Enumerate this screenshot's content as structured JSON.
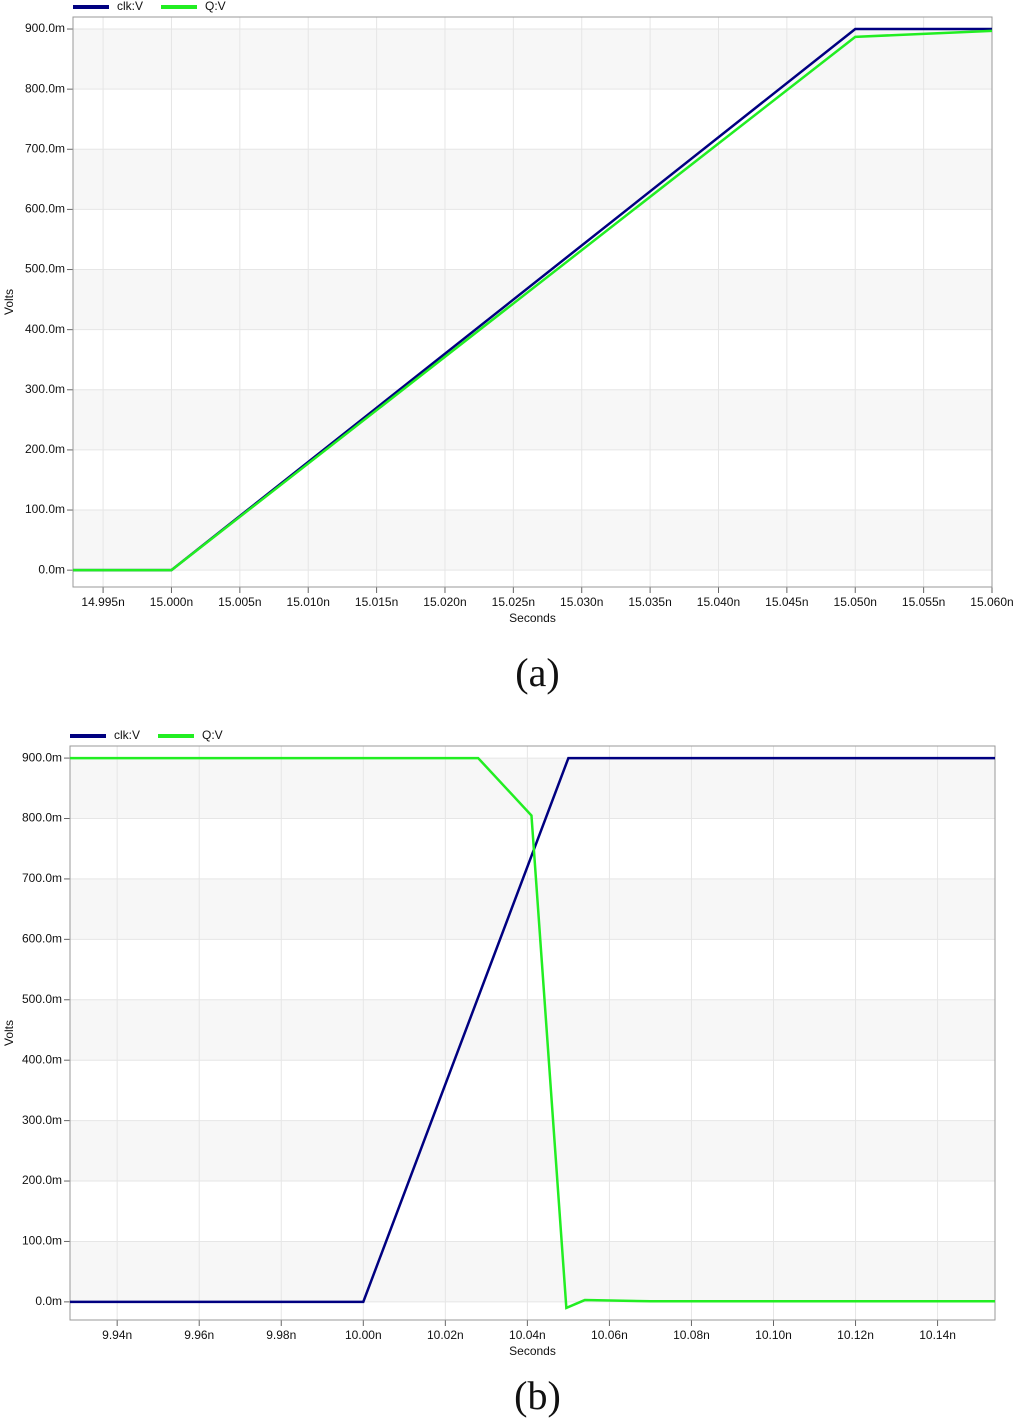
{
  "chart_data": [
    {
      "type": "line",
      "caption": "(a)",
      "x_label": "Seconds",
      "y_label": "Volts",
      "grid": true,
      "series": [
        {
          "name": "clk:V",
          "color": "#000080",
          "x": [
            14.9928,
            15.0,
            15.05,
            15.06
          ],
          "values": [
            0,
            0,
            0.9,
            0.9
          ]
        },
        {
          "name": "Q:V",
          "color": "#22ee22",
          "x": [
            14.9928,
            15.0,
            15.05,
            15.06
          ],
          "values": [
            0,
            0,
            0.887,
            0.897
          ]
        }
      ],
      "xlim": [
        14.9928,
        15.06
      ],
      "xticks": [
        {
          "value": 14.995,
          "label": "14.995n"
        },
        {
          "value": 15.0,
          "label": "15.000n"
        },
        {
          "value": 15.005,
          "label": "15.005n"
        },
        {
          "value": 15.01,
          "label": "15.010n"
        },
        {
          "value": 15.015,
          "label": "15.015n"
        },
        {
          "value": 15.02,
          "label": "15.020n"
        },
        {
          "value": 15.025,
          "label": "15.025n"
        },
        {
          "value": 15.03,
          "label": "15.030n"
        },
        {
          "value": 15.035,
          "label": "15.035n"
        },
        {
          "value": 15.04,
          "label": "15.040n"
        },
        {
          "value": 15.045,
          "label": "15.045n"
        },
        {
          "value": 15.05,
          "label": "15.050n"
        },
        {
          "value": 15.055,
          "label": "15.055n"
        },
        {
          "value": 15.06,
          "label": "15.060n"
        }
      ],
      "ylim": [
        -0.028,
        0.92
      ],
      "yticks": [
        {
          "value": 0,
          "label": "0.0m"
        },
        {
          "value": 0.1,
          "label": "100.0m"
        },
        {
          "value": 0.2,
          "label": "200.0m"
        },
        {
          "value": 0.3,
          "label": "300.0m"
        },
        {
          "value": 0.4,
          "label": "400.0m"
        },
        {
          "value": 0.5,
          "label": "500.0m"
        },
        {
          "value": 0.6,
          "label": "600.0m"
        },
        {
          "value": 0.7,
          "label": "700.0m"
        },
        {
          "value": 0.8,
          "label": "800.0m"
        },
        {
          "value": 0.9,
          "label": "900.0m"
        }
      ]
    },
    {
      "type": "line",
      "caption": "(b)",
      "x_label": "Seconds",
      "y_label": "Volts",
      "grid": true,
      "series": [
        {
          "name": "clk:V",
          "color": "#000080",
          "x": [
            9.9285,
            10.0,
            10.05,
            10.154
          ],
          "values": [
            0,
            0,
            0.9,
            0.9
          ]
        },
        {
          "name": "Q:V",
          "color": "#22ee22",
          "x": [
            9.9285,
            10.028,
            10.041,
            10.0495,
            10.054,
            10.07,
            10.154
          ],
          "values": [
            0.9,
            0.9,
            0.805,
            -0.01,
            0.003,
            0.001,
            0.001
          ]
        }
      ],
      "xlim": [
        9.9285,
        10.154
      ],
      "xticks": [
        {
          "value": 9.94,
          "label": "9.94n"
        },
        {
          "value": 9.96,
          "label": "9.96n"
        },
        {
          "value": 9.98,
          "label": "9.98n"
        },
        {
          "value": 10.0,
          "label": "10.00n"
        },
        {
          "value": 10.02,
          "label": "10.02n"
        },
        {
          "value": 10.04,
          "label": "10.04n"
        },
        {
          "value": 10.06,
          "label": "10.06n"
        },
        {
          "value": 10.08,
          "label": "10.08n"
        },
        {
          "value": 10.1,
          "label": "10.10n"
        },
        {
          "value": 10.12,
          "label": "10.12n"
        },
        {
          "value": 10.14,
          "label": "10.14n"
        }
      ],
      "ylim": [
        -0.03,
        0.92
      ],
      "yticks": [
        {
          "value": 0,
          "label": "0.0m"
        },
        {
          "value": 0.1,
          "label": "100.0m"
        },
        {
          "value": 0.2,
          "label": "200.0m"
        },
        {
          "value": 0.3,
          "label": "300.0m"
        },
        {
          "value": 0.4,
          "label": "400.0m"
        },
        {
          "value": 0.5,
          "label": "500.0m"
        },
        {
          "value": 0.6,
          "label": "600.0m"
        },
        {
          "value": 0.7,
          "label": "700.0m"
        },
        {
          "value": 0.8,
          "label": "800.0m"
        },
        {
          "value": 0.9,
          "label": "900.0m"
        }
      ]
    }
  ]
}
